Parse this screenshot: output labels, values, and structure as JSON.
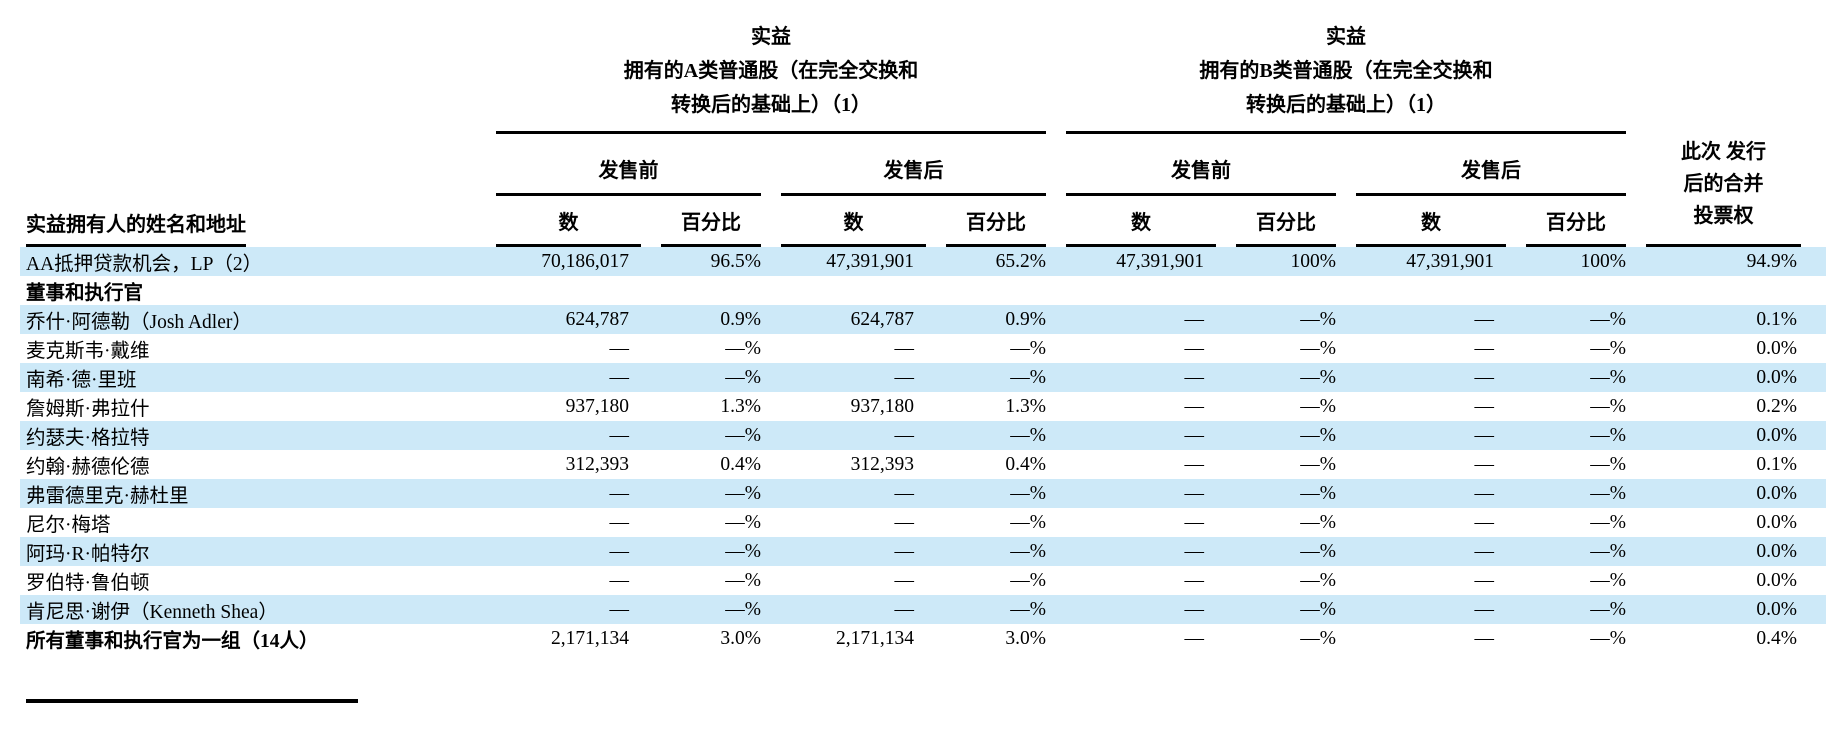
{
  "colors": {
    "stripe": "#cde9f8",
    "text": "#000000",
    "rule": "#000000"
  },
  "table": {
    "name_header": "实益拥有人的姓名和地址",
    "group_headers": [
      {
        "title_lines": [
          "实益",
          "拥有的A类普通股（在完全交换和",
          "转换后的基础上）（1）"
        ]
      },
      {
        "title_lines": [
          "实益",
          "拥有的B类普通股（在完全交换和",
          "转换后的基础上）（1）"
        ]
      }
    ],
    "subgroup_headers": {
      "pre": "发售前",
      "post": "发售后"
    },
    "voting_header_lines": [
      "此次 发行",
      "后的合并",
      "投票权"
    ],
    "col_headers": {
      "number": "数",
      "percent": "百分比"
    },
    "rows": [
      {
        "name": "AA抵押贷款机会，LP（2）",
        "shaded": true,
        "bold": false,
        "values": [
          "70,186,017",
          "96.5%",
          "47,391,901",
          "65.2%",
          "47,391,901",
          "100%",
          "47,391,901",
          "100%",
          "94.9%"
        ]
      },
      {
        "name": "董事和执行官",
        "shaded": false,
        "bold": true,
        "values": [
          "",
          "",
          "",
          "",
          "",
          "",
          "",
          "",
          ""
        ]
      },
      {
        "name": "乔什·阿德勒（Josh Adler）",
        "shaded": true,
        "bold": false,
        "values": [
          "624,787",
          "0.9%",
          "624,787",
          "0.9%",
          "—",
          "—%",
          "—",
          "—%",
          "0.1%"
        ]
      },
      {
        "name": "麦克斯韦·戴维",
        "shaded": false,
        "bold": false,
        "values": [
          "—",
          "—%",
          "—",
          "—%",
          "—",
          "—%",
          "—",
          "—%",
          "0.0%"
        ]
      },
      {
        "name": "南希·德·里班",
        "shaded": true,
        "bold": false,
        "values": [
          "—",
          "—%",
          "—",
          "—%",
          "—",
          "—%",
          "—",
          "—%",
          "0.0%"
        ]
      },
      {
        "name": "詹姆斯·弗拉什",
        "shaded": false,
        "bold": false,
        "values": [
          "937,180",
          "1.3%",
          "937,180",
          "1.3%",
          "—",
          "—%",
          "—",
          "—%",
          "0.2%"
        ]
      },
      {
        "name": "约瑟夫·格拉特",
        "shaded": true,
        "bold": false,
        "values": [
          "—",
          "—%",
          "—",
          "—%",
          "—",
          "—%",
          "—",
          "—%",
          "0.0%"
        ]
      },
      {
        "name": "约翰·赫德伦德",
        "shaded": false,
        "bold": false,
        "values": [
          "312,393",
          "0.4%",
          "312,393",
          "0.4%",
          "—",
          "—%",
          "—",
          "—%",
          "0.1%"
        ]
      },
      {
        "name": "弗雷德里克·赫杜里",
        "shaded": true,
        "bold": false,
        "values": [
          "—",
          "—%",
          "—",
          "—%",
          "—",
          "—%",
          "—",
          "—%",
          "0.0%"
        ]
      },
      {
        "name": "尼尔·梅塔",
        "shaded": false,
        "bold": false,
        "values": [
          "—",
          "—%",
          "—",
          "—%",
          "—",
          "—%",
          "—",
          "—%",
          "0.0%"
        ]
      },
      {
        "name": "阿玛·R·帕特尔",
        "shaded": true,
        "bold": false,
        "values": [
          "—",
          "—%",
          "—",
          "—%",
          "—",
          "—%",
          "—",
          "—%",
          "0.0%"
        ]
      },
      {
        "name": "罗伯特·鲁伯顿",
        "shaded": false,
        "bold": false,
        "values": [
          "—",
          "—%",
          "—",
          "—%",
          "—",
          "—%",
          "—",
          "—%",
          "0.0%"
        ]
      },
      {
        "name": "肯尼思·谢伊（Kenneth Shea）",
        "shaded": true,
        "bold": false,
        "values": [
          "—",
          "—%",
          "—",
          "—%",
          "—",
          "—%",
          "—",
          "—%",
          "0.0%"
        ]
      },
      {
        "name": "所有董事和执行官为一组（14人）",
        "shaded": false,
        "bold": true,
        "values": [
          "2,171,134",
          "3.0%",
          "2,171,134",
          "3.0%",
          "—",
          "—%",
          "—",
          "—%",
          "0.4%"
        ]
      }
    ]
  }
}
